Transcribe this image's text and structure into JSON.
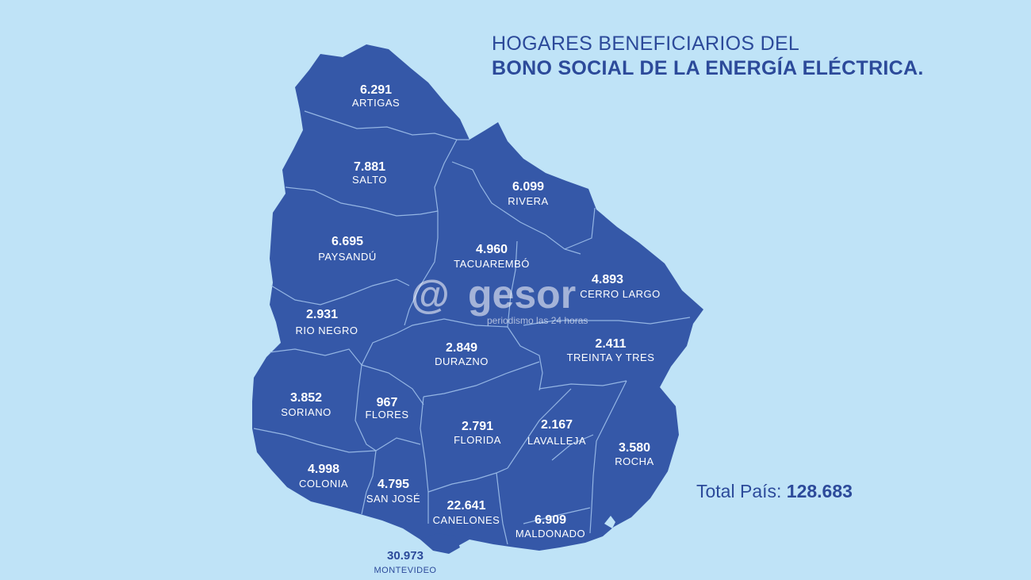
{
  "title": {
    "line1": "HOGARES BENEFICIARIOS DEL",
    "line2": "BONO SOCIAL DE LA ENERGÍA ELÉCTRICA."
  },
  "total": {
    "label": "Total País:",
    "value": "128.683"
  },
  "colors": {
    "background": "#bfe3f7",
    "map_fill": "#3558a8",
    "text_accent": "#2c4a9a"
  },
  "watermark": {
    "at": "@",
    "brand": "gesor",
    "tagline": "periodismo las 24 horas"
  },
  "departments": [
    {
      "name": "ARTIGAS",
      "value": "6.291"
    },
    {
      "name": "SALTO",
      "value": "7.881"
    },
    {
      "name": "RIVERA",
      "value": "6.099"
    },
    {
      "name": "PAYSANDÚ",
      "value": "6.695"
    },
    {
      "name": "TACUAREMBÓ",
      "value": "4.960"
    },
    {
      "name": "CERRO LARGO",
      "value": "4.893"
    },
    {
      "name": "RIO NEGRO",
      "value": "2.931"
    },
    {
      "name": "DURAZNO",
      "value": "2.849"
    },
    {
      "name": "TREINTA Y TRES",
      "value": "2.411"
    },
    {
      "name": "SORIANO",
      "value": "3.852"
    },
    {
      "name": "FLORES",
      "value": "967"
    },
    {
      "name": "FLORIDA",
      "value": "2.791"
    },
    {
      "name": "LAVALLEJA",
      "value": "2.167"
    },
    {
      "name": "ROCHA",
      "value": "3.580"
    },
    {
      "name": "COLONIA",
      "value": "4.998"
    },
    {
      "name": "SAN JOSÉ",
      "value": "4.795"
    },
    {
      "name": "CANELONES",
      "value": "22.641"
    },
    {
      "name": "MALDONADO",
      "value": "6.909"
    },
    {
      "name": "MONTEVIDEO",
      "value": "30.973"
    }
  ]
}
